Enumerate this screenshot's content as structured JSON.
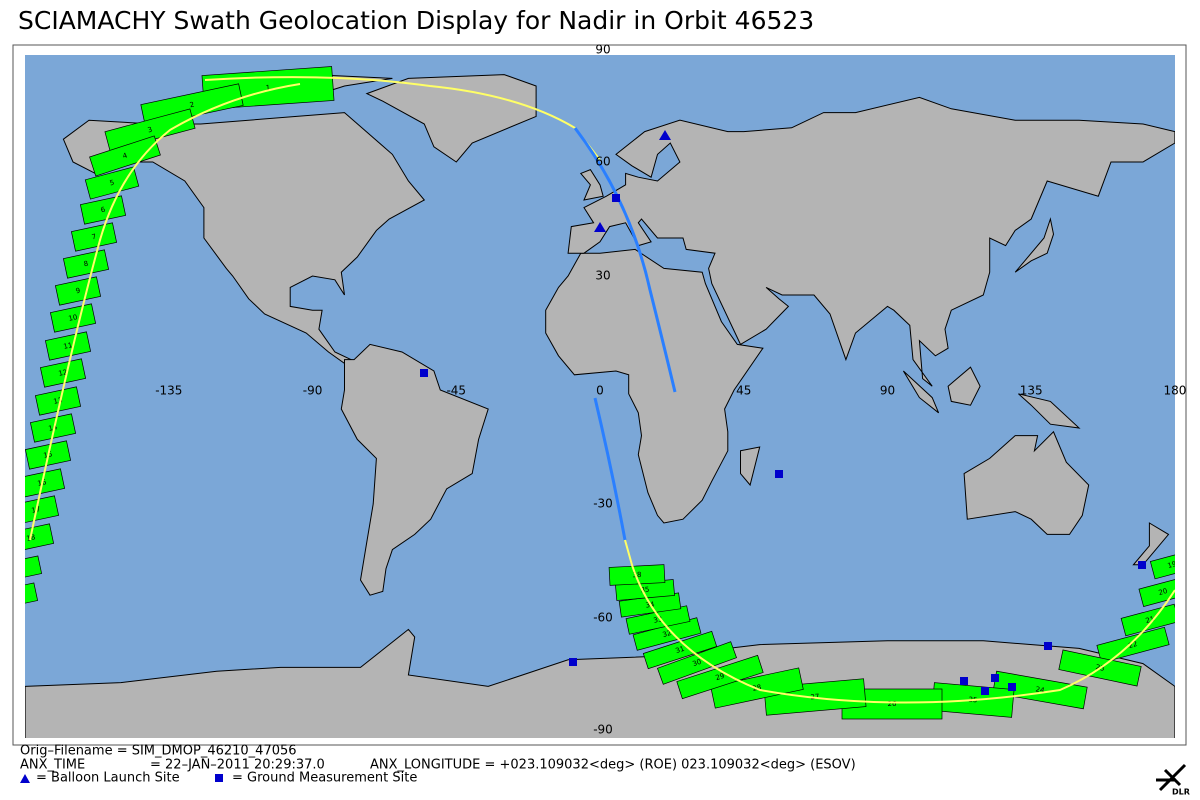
{
  "title": "SCIAMACHY Swath Geolocation Display for Nadir in Orbit 46523",
  "lat_labels": [
    90,
    60,
    30,
    -30,
    -60,
    -90
  ],
  "lon_labels": [
    -135,
    -90,
    -45,
    0,
    45,
    90,
    135,
    180
  ],
  "swath_labels": [
    1,
    2,
    3,
    4,
    5,
    6,
    7,
    8,
    9,
    10,
    11,
    12,
    13,
    14,
    15,
    16,
    17,
    18,
    19,
    20,
    21,
    22,
    23,
    24,
    25,
    26,
    27,
    28,
    29,
    30,
    31,
    32,
    33,
    34,
    35,
    38
  ],
  "footer": {
    "filename": "Orig–Filename = SIM_DMOP_46210_47056",
    "anx_time_label": "ANX_TIME",
    "anx_time_value": "= 22–JAN–2011 20:29:37.0",
    "anx_longitude": "ANX_LONGITUDE = +023.109032<deg> (ROE) 023.109032<deg> (ESOV)",
    "balloon_legend": "= Balloon Launch Site",
    "ground_legend": "= Ground Measurement Site",
    "logo": "DLR"
  }
}
